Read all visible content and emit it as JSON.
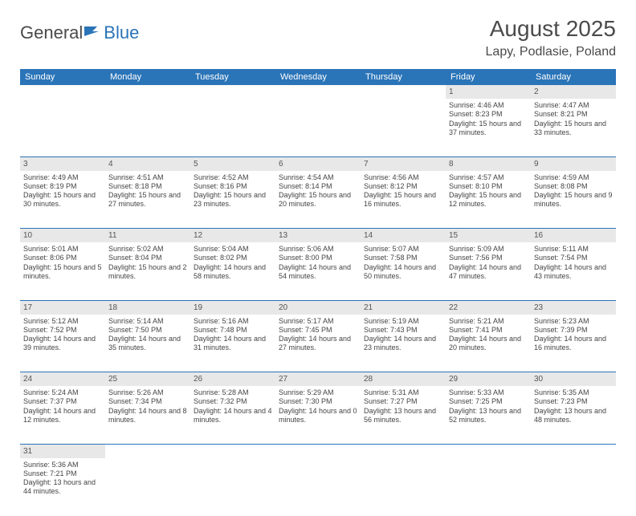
{
  "logo": {
    "general": "General",
    "blue": "Blue"
  },
  "title": "August 2025",
  "location": "Lapy, Podlasie, Poland",
  "dayHeaders": [
    "Sunday",
    "Monday",
    "Tuesday",
    "Wednesday",
    "Thursday",
    "Friday",
    "Saturday"
  ],
  "header_bg": "#2a74b8",
  "daynum_bg": "#e8e8e8",
  "weeks": [
    [
      null,
      null,
      null,
      null,
      null,
      {
        "n": "1",
        "sr": "4:46 AM",
        "ss": "8:23 PM",
        "dl": "15 hours and 37 minutes."
      },
      {
        "n": "2",
        "sr": "4:47 AM",
        "ss": "8:21 PM",
        "dl": "15 hours and 33 minutes."
      }
    ],
    [
      {
        "n": "3",
        "sr": "4:49 AM",
        "ss": "8:19 PM",
        "dl": "15 hours and 30 minutes."
      },
      {
        "n": "4",
        "sr": "4:51 AM",
        "ss": "8:18 PM",
        "dl": "15 hours and 27 minutes."
      },
      {
        "n": "5",
        "sr": "4:52 AM",
        "ss": "8:16 PM",
        "dl": "15 hours and 23 minutes."
      },
      {
        "n": "6",
        "sr": "4:54 AM",
        "ss": "8:14 PM",
        "dl": "15 hours and 20 minutes."
      },
      {
        "n": "7",
        "sr": "4:56 AM",
        "ss": "8:12 PM",
        "dl": "15 hours and 16 minutes."
      },
      {
        "n": "8",
        "sr": "4:57 AM",
        "ss": "8:10 PM",
        "dl": "15 hours and 12 minutes."
      },
      {
        "n": "9",
        "sr": "4:59 AM",
        "ss": "8:08 PM",
        "dl": "15 hours and 9 minutes."
      }
    ],
    [
      {
        "n": "10",
        "sr": "5:01 AM",
        "ss": "8:06 PM",
        "dl": "15 hours and 5 minutes."
      },
      {
        "n": "11",
        "sr": "5:02 AM",
        "ss": "8:04 PM",
        "dl": "15 hours and 2 minutes."
      },
      {
        "n": "12",
        "sr": "5:04 AM",
        "ss": "8:02 PM",
        "dl": "14 hours and 58 minutes."
      },
      {
        "n": "13",
        "sr": "5:06 AM",
        "ss": "8:00 PM",
        "dl": "14 hours and 54 minutes."
      },
      {
        "n": "14",
        "sr": "5:07 AM",
        "ss": "7:58 PM",
        "dl": "14 hours and 50 minutes."
      },
      {
        "n": "15",
        "sr": "5:09 AM",
        "ss": "7:56 PM",
        "dl": "14 hours and 47 minutes."
      },
      {
        "n": "16",
        "sr": "5:11 AM",
        "ss": "7:54 PM",
        "dl": "14 hours and 43 minutes."
      }
    ],
    [
      {
        "n": "17",
        "sr": "5:12 AM",
        "ss": "7:52 PM",
        "dl": "14 hours and 39 minutes."
      },
      {
        "n": "18",
        "sr": "5:14 AM",
        "ss": "7:50 PM",
        "dl": "14 hours and 35 minutes."
      },
      {
        "n": "19",
        "sr": "5:16 AM",
        "ss": "7:48 PM",
        "dl": "14 hours and 31 minutes."
      },
      {
        "n": "20",
        "sr": "5:17 AM",
        "ss": "7:45 PM",
        "dl": "14 hours and 27 minutes."
      },
      {
        "n": "21",
        "sr": "5:19 AM",
        "ss": "7:43 PM",
        "dl": "14 hours and 23 minutes."
      },
      {
        "n": "22",
        "sr": "5:21 AM",
        "ss": "7:41 PM",
        "dl": "14 hours and 20 minutes."
      },
      {
        "n": "23",
        "sr": "5:23 AM",
        "ss": "7:39 PM",
        "dl": "14 hours and 16 minutes."
      }
    ],
    [
      {
        "n": "24",
        "sr": "5:24 AM",
        "ss": "7:37 PM",
        "dl": "14 hours and 12 minutes."
      },
      {
        "n": "25",
        "sr": "5:26 AM",
        "ss": "7:34 PM",
        "dl": "14 hours and 8 minutes."
      },
      {
        "n": "26",
        "sr": "5:28 AM",
        "ss": "7:32 PM",
        "dl": "14 hours and 4 minutes."
      },
      {
        "n": "27",
        "sr": "5:29 AM",
        "ss": "7:30 PM",
        "dl": "14 hours and 0 minutes."
      },
      {
        "n": "28",
        "sr": "5:31 AM",
        "ss": "7:27 PM",
        "dl": "13 hours and 56 minutes."
      },
      {
        "n": "29",
        "sr": "5:33 AM",
        "ss": "7:25 PM",
        "dl": "13 hours and 52 minutes."
      },
      {
        "n": "30",
        "sr": "5:35 AM",
        "ss": "7:23 PM",
        "dl": "13 hours and 48 minutes."
      }
    ],
    [
      {
        "n": "31",
        "sr": "5:36 AM",
        "ss": "7:21 PM",
        "dl": "13 hours and 44 minutes."
      },
      null,
      null,
      null,
      null,
      null,
      null
    ]
  ],
  "labels": {
    "sunrise": "Sunrise: ",
    "sunset": "Sunset: ",
    "daylight": "Daylight: "
  }
}
